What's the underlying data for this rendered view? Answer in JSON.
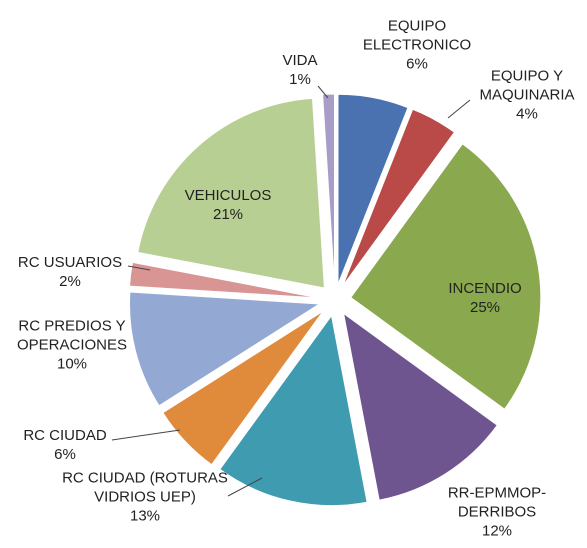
{
  "chart_data": {
    "type": "pie",
    "categories": [
      "EQUIPO ELECTRONICO",
      "EQUIPO Y MAQUINARIA",
      "INCENDIO",
      "RR-EPMMOP-DERRIBOS",
      "RC CIUDAD (ROTURAS VIDRIOS UEP)",
      "RC CIUDAD",
      "RC PREDIOS Y OPERACIONES",
      "RC USUARIOS",
      "VEHICULOS",
      "VIDA"
    ],
    "values": [
      6,
      4,
      25,
      12,
      13,
      6,
      10,
      2,
      21,
      1
    ],
    "value_labels": [
      "6%",
      "4%",
      "25%",
      "12%",
      "13%",
      "6%",
      "10%",
      "2%",
      "21%",
      "1%"
    ],
    "colors": [
      "#4a72b0",
      "#b94a48",
      "#8aa84e",
      "#6e558f",
      "#3e9bb0",
      "#e08a3c",
      "#93a9d4",
      "#d99594",
      "#b8cf93",
      "#a89cc8"
    ]
  }
}
